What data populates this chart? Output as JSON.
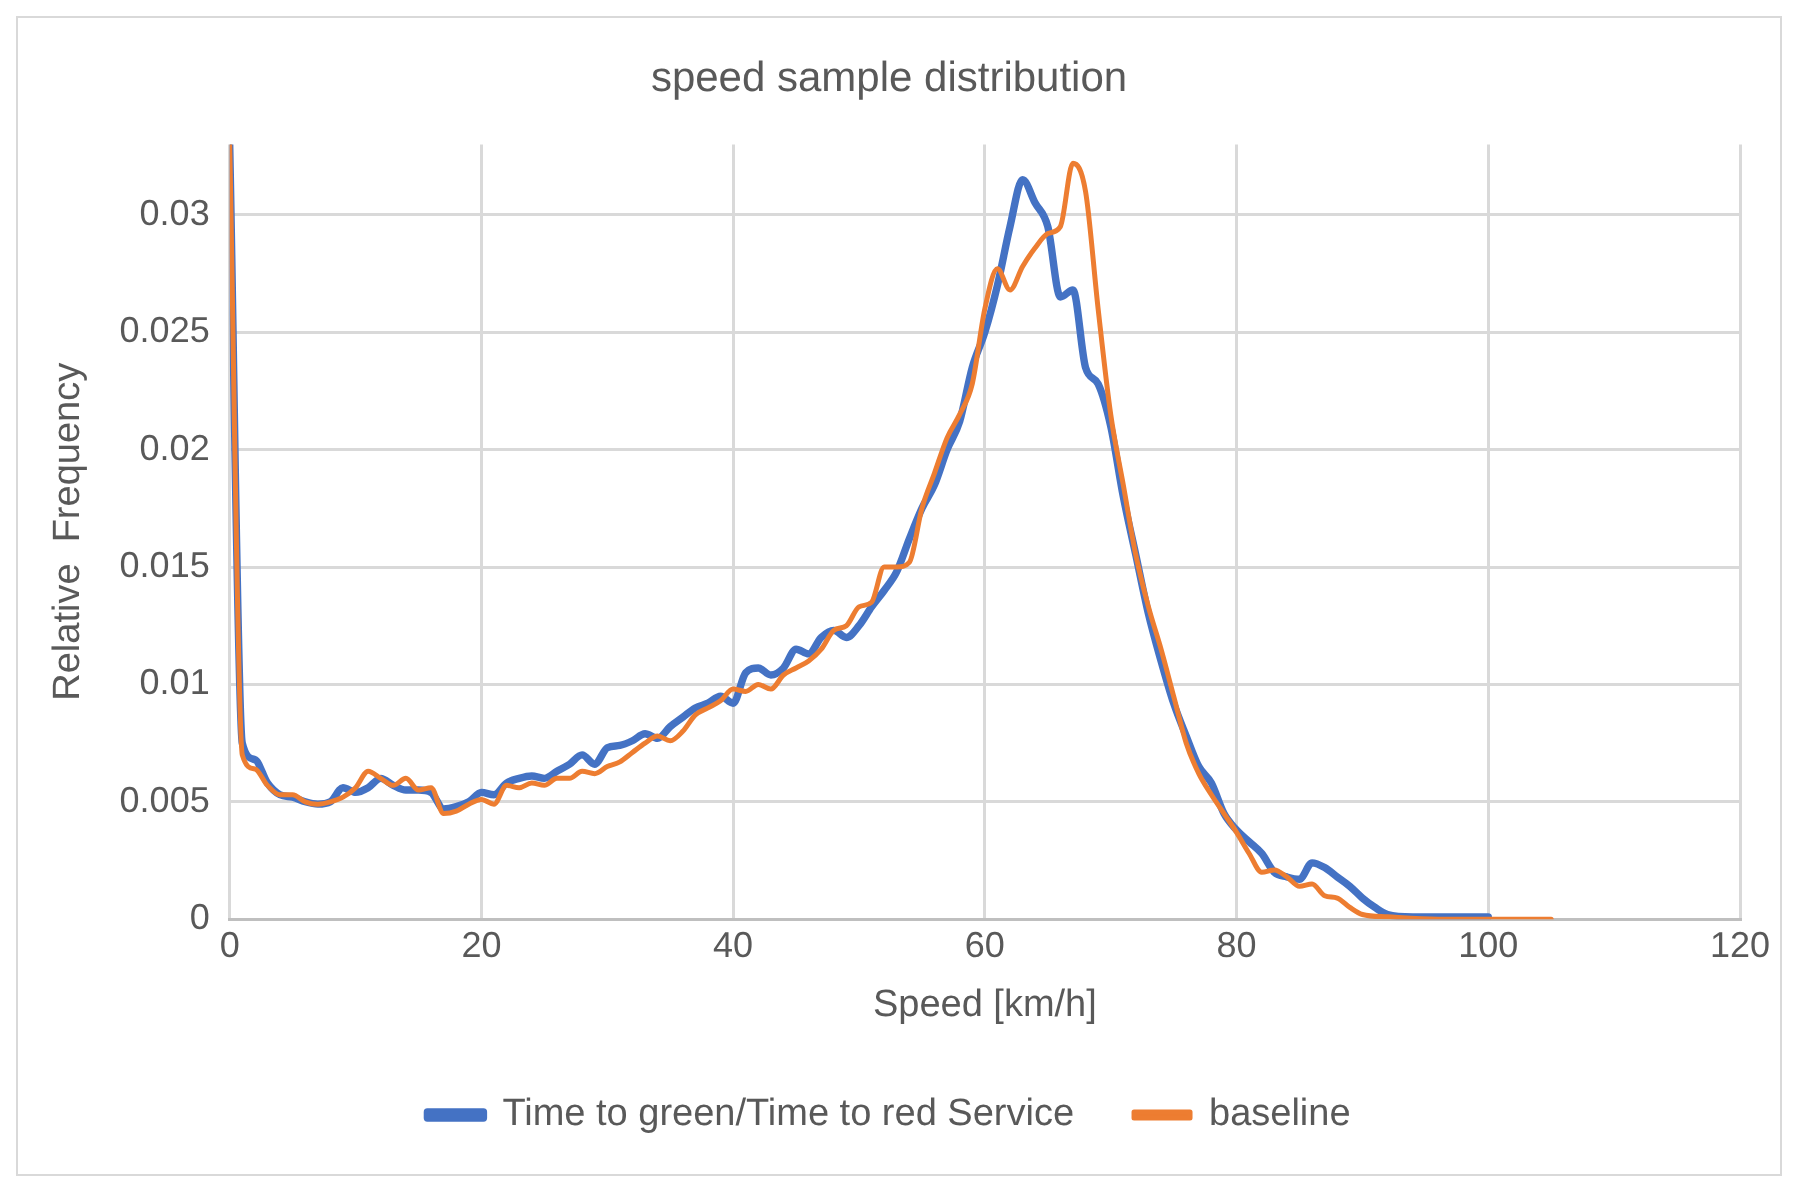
{
  "chart_data": {
    "type": "line",
    "title": "speed sample distribution",
    "xlabel": "Speed [km/h]",
    "ylabel": "Relative  Frequency",
    "xlim": [
      0,
      120
    ],
    "xticks": [
      0,
      20,
      40,
      60,
      80,
      100,
      120
    ],
    "ylim": [
      0,
      0.033
    ],
    "yticks": [
      0,
      0.005,
      0.01,
      0.015,
      0.02,
      0.025,
      0.03
    ],
    "grid": true,
    "legend": "bottom",
    "marker": "none",
    "line_style": "solid",
    "series": [
      {
        "name": "Time to green/Time to red Service",
        "color": "#4472c4",
        "x": [
          0,
          1,
          2,
          3,
          4,
          5,
          6,
          7,
          8,
          9,
          10,
          11,
          12,
          13,
          14,
          15,
          16,
          17,
          18,
          19,
          20,
          21,
          22,
          23,
          24,
          25,
          26,
          27,
          28,
          29,
          30,
          31,
          32,
          33,
          34,
          35,
          36,
          37,
          38,
          39,
          40,
          41,
          42,
          43,
          44,
          45,
          46,
          47,
          48,
          49,
          50,
          51,
          52,
          53,
          54,
          55,
          56,
          57,
          58,
          59,
          60,
          61,
          62,
          63,
          64,
          65,
          66,
          67,
          68,
          69,
          70,
          71,
          72,
          73,
          74,
          75,
          76,
          77,
          78,
          79,
          80,
          81,
          82,
          83,
          84,
          85,
          86,
          87,
          88,
          89,
          90,
          91,
          92,
          94,
          96,
          100
        ],
        "values": [
          0.033,
          0.0075,
          0.0068,
          0.0058,
          0.0053,
          0.0052,
          0.005,
          0.0049,
          0.005,
          0.0056,
          0.0054,
          0.0056,
          0.006,
          0.0057,
          0.0055,
          0.0055,
          0.0054,
          0.0047,
          0.0048,
          0.005,
          0.0054,
          0.0053,
          0.0058,
          0.006,
          0.0061,
          0.006,
          0.0063,
          0.0066,
          0.007,
          0.0066,
          0.0073,
          0.0074,
          0.0076,
          0.0079,
          0.0077,
          0.0082,
          0.0086,
          0.009,
          0.0092,
          0.0095,
          0.0092,
          0.0105,
          0.0107,
          0.0104,
          0.0107,
          0.0115,
          0.0113,
          0.012,
          0.0123,
          0.012,
          0.0125,
          0.0133,
          0.014,
          0.0148,
          0.0162,
          0.0175,
          0.0185,
          0.02,
          0.0212,
          0.0235,
          0.025,
          0.027,
          0.0295,
          0.0315,
          0.0305,
          0.0295,
          0.0265,
          0.0268,
          0.0235,
          0.0228,
          0.021,
          0.018,
          0.0155,
          0.013,
          0.011,
          0.0092,
          0.0078,
          0.0065,
          0.0058,
          0.0045,
          0.0038,
          0.0033,
          0.0028,
          0.002,
          0.0018,
          0.0017,
          0.0024,
          0.0022,
          0.0018,
          0.0014,
          0.0009,
          0.0005,
          0.0002,
          0.0001,
          0.0001,
          0.0001
        ]
      },
      {
        "name": "baseline",
        "color": "#ed7d31",
        "x": [
          0,
          1,
          2,
          3,
          4,
          5,
          6,
          7,
          8,
          9,
          10,
          11,
          12,
          13,
          14,
          15,
          16,
          17,
          18,
          19,
          20,
          21,
          22,
          23,
          24,
          25,
          26,
          27,
          28,
          29,
          30,
          31,
          32,
          33,
          34,
          35,
          36,
          37,
          38,
          39,
          40,
          41,
          42,
          43,
          44,
          45,
          46,
          47,
          48,
          49,
          50,
          51,
          52,
          53,
          54,
          55,
          56,
          57,
          58,
          59,
          60,
          61,
          62,
          63,
          64,
          65,
          66,
          67,
          68,
          69,
          70,
          71,
          72,
          73,
          74,
          75,
          76,
          77,
          78,
          79,
          80,
          81,
          82,
          83,
          84,
          85,
          86,
          87,
          88,
          89,
          90,
          92,
          96,
          100,
          105
        ],
        "values": [
          0.033,
          0.007,
          0.0064,
          0.0057,
          0.0053,
          0.0053,
          0.005,
          0.0049,
          0.005,
          0.0052,
          0.0056,
          0.0063,
          0.006,
          0.0057,
          0.006,
          0.0055,
          0.0056,
          0.0045,
          0.0046,
          0.0049,
          0.0051,
          0.0049,
          0.0057,
          0.0056,
          0.0058,
          0.0057,
          0.006,
          0.006,
          0.0063,
          0.0062,
          0.0065,
          0.0067,
          0.0071,
          0.0075,
          0.0078,
          0.0076,
          0.008,
          0.0087,
          0.009,
          0.0093,
          0.0098,
          0.0097,
          0.01,
          0.0098,
          0.0104,
          0.0107,
          0.011,
          0.0115,
          0.0123,
          0.0125,
          0.0133,
          0.0135,
          0.015,
          0.015,
          0.0152,
          0.0175,
          0.019,
          0.0205,
          0.0215,
          0.0228,
          0.026,
          0.0277,
          0.0268,
          0.0278,
          0.0286,
          0.0292,
          0.0295,
          0.0322,
          0.031,
          0.026,
          0.0215,
          0.0185,
          0.0155,
          0.0133,
          0.0115,
          0.0095,
          0.0075,
          0.0062,
          0.0053,
          0.0045,
          0.0037,
          0.0028,
          0.002,
          0.0021,
          0.0018,
          0.0014,
          0.0015,
          0.001,
          0.0009,
          0.0005,
          0.0002,
          0.0001,
          0,
          0,
          0
        ]
      }
    ]
  }
}
